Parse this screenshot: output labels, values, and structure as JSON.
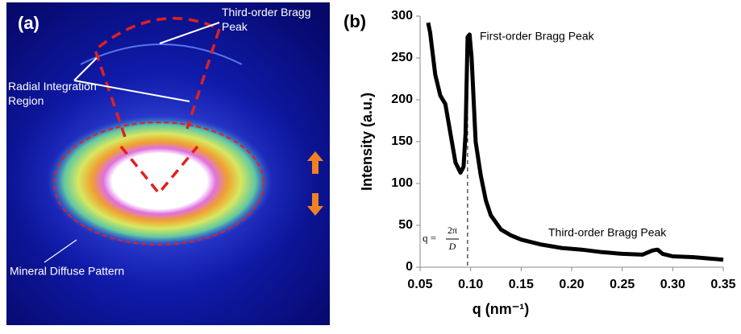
{
  "figure": {
    "panel_a": {
      "label": "(a)",
      "third_order": "Third-order Bragg Peak",
      "radial": "Radial Integration Region",
      "mineral": "Mineral Diffuse Pattern"
    }
  },
  "chart_data": {
    "type": "line",
    "panel_label": "(b)",
    "xlabel": "q (nm⁻¹)",
    "ylabel": "Intensity (a.u.)",
    "x": [
      0.058,
      0.06,
      0.065,
      0.07,
      0.075,
      0.08,
      0.085,
      0.09,
      0.093,
      0.095,
      0.097,
      0.099,
      0.101,
      0.103,
      0.105,
      0.11,
      0.115,
      0.12,
      0.13,
      0.14,
      0.15,
      0.17,
      0.19,
      0.21,
      0.23,
      0.25,
      0.27,
      0.28,
      0.285,
      0.29,
      0.3,
      0.32,
      0.34,
      0.35
    ],
    "values": [
      292,
      280,
      230,
      205,
      195,
      160,
      125,
      113,
      120,
      160,
      275,
      278,
      250,
      200,
      150,
      110,
      80,
      62,
      45,
      38,
      33,
      27,
      23,
      21,
      18,
      16,
      15,
      20,
      21,
      16,
      13,
      12,
      10,
      9
    ],
    "color": "#000000",
    "xlim": [
      0.05,
      0.35
    ],
    "ylim": [
      0,
      300
    ],
    "xticks": [
      0.05,
      {
        "value": 0.1,
        "label": "0.10"
      },
      0.15,
      {
        "value": 0.2,
        "label": "0.20"
      },
      0.25,
      {
        "value": 0.3,
        "label": "0.30"
      },
      0.35
    ],
    "yticks": [
      0,
      50,
      100,
      150,
      200,
      250,
      300
    ],
    "peak_marker_x": 0.097,
    "annotations": {
      "first_order": "First-order Bragg Peak",
      "third_order": "Third-order Bragg Peak",
      "q_lhs": "q =",
      "q_num": "2π",
      "q_den": "D"
    }
  }
}
